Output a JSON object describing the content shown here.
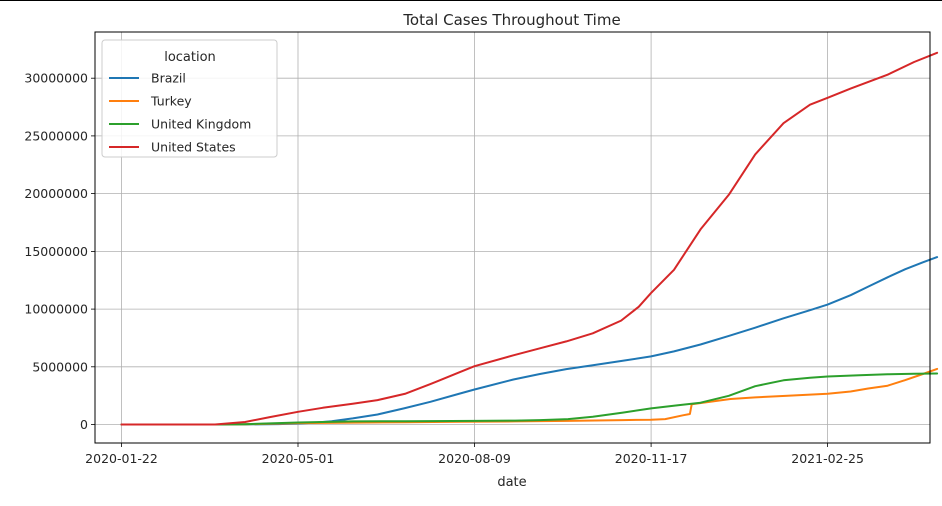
{
  "chart_data": {
    "type": "line",
    "title": "Total Cases Throughout Time",
    "xlabel": "date",
    "ylabel": "",
    "x_ticks": [
      "2020-01-22",
      "2020-05-01",
      "2020-08-09",
      "2020-11-17",
      "2021-02-25"
    ],
    "y_ticks": [
      0,
      5000000,
      10000000,
      15000000,
      20000000,
      25000000,
      30000000
    ],
    "xlim": [
      "2020-01-07",
      "2021-04-24"
    ],
    "ylim": [
      -1600000,
      34000000
    ],
    "grid": true,
    "legend": {
      "title": "location",
      "placement": "top-left"
    },
    "series": [
      {
        "name": "Brazil",
        "color": "#1f77b4",
        "points": [
          [
            "2020-01-22",
            0
          ],
          [
            "2020-02-26",
            0
          ],
          [
            "2020-03-15",
            200
          ],
          [
            "2020-04-01",
            6800
          ],
          [
            "2020-04-20",
            40000
          ],
          [
            "2020-05-01",
            92000
          ],
          [
            "2020-05-10",
            155000
          ],
          [
            "2020-05-20",
            290000
          ],
          [
            "2020-06-01",
            530000
          ],
          [
            "2020-06-15",
            870000
          ],
          [
            "2020-06-30",
            1400000
          ],
          [
            "2020-07-15",
            1970000
          ],
          [
            "2020-07-31",
            2650000
          ],
          [
            "2020-08-09",
            3035000
          ],
          [
            "2020-08-31",
            3900000
          ],
          [
            "2020-09-15",
            4380000
          ],
          [
            "2020-09-30",
            4800000
          ],
          [
            "2020-10-15",
            5140000
          ],
          [
            "2020-10-31",
            5500000
          ],
          [
            "2020-11-17",
            5900000
          ],
          [
            "2020-11-30",
            6330000
          ],
          [
            "2020-12-15",
            6930000
          ],
          [
            "2020-12-31",
            7680000
          ],
          [
            "2021-01-15",
            8390000
          ],
          [
            "2021-01-31",
            9200000
          ],
          [
            "2021-02-15",
            9900000
          ],
          [
            "2021-02-25",
            10390000
          ],
          [
            "2021-03-10",
            11200000
          ],
          [
            "2021-03-20",
            11950000
          ],
          [
            "2021-03-31",
            12750000
          ],
          [
            "2021-04-10",
            13450000
          ],
          [
            "2021-04-20",
            14050000
          ],
          [
            "2021-04-28",
            14500000
          ]
        ]
      },
      {
        "name": "Turkey",
        "color": "#ff7f0e",
        "points": [
          [
            "2020-01-22",
            0
          ],
          [
            "2020-03-10",
            0
          ],
          [
            "2020-03-20",
            360
          ],
          [
            "2020-04-01",
            15700
          ],
          [
            "2020-04-15",
            70000
          ],
          [
            "2020-05-01",
            122000
          ],
          [
            "2020-06-01",
            164000
          ],
          [
            "2020-07-01",
            201000
          ],
          [
            "2020-08-01",
            232000
          ],
          [
            "2020-09-01",
            272000
          ],
          [
            "2020-10-01",
            318000
          ],
          [
            "2020-11-01",
            380000
          ],
          [
            "2020-11-17",
            420000
          ],
          [
            "2020-11-25",
            470000
          ],
          [
            "2020-12-05",
            800000
          ],
          [
            "2020-12-09",
            910000
          ],
          [
            "2020-12-10",
            1750000
          ],
          [
            "2020-12-20",
            1960000
          ],
          [
            "2021-01-01",
            2210000
          ],
          [
            "2021-01-15",
            2350000
          ],
          [
            "2021-02-01",
            2480000
          ],
          [
            "2021-02-25",
            2660000
          ],
          [
            "2021-03-10",
            2860000
          ],
          [
            "2021-03-20",
            3120000
          ],
          [
            "2021-03-31",
            3360000
          ],
          [
            "2021-04-10",
            3850000
          ],
          [
            "2021-04-20",
            4380000
          ],
          [
            "2021-04-28",
            4820000
          ]
        ]
      },
      {
        "name": "United Kingdom",
        "color": "#2ca02c",
        "points": [
          [
            "2020-01-22",
            0
          ],
          [
            "2020-03-01",
            35
          ],
          [
            "2020-03-20",
            4000
          ],
          [
            "2020-04-01",
            30000
          ],
          [
            "2020-04-15",
            95000
          ],
          [
            "2020-05-01",
            178000
          ],
          [
            "2020-06-01",
            275000
          ],
          [
            "2020-07-01",
            285000
          ],
          [
            "2020-08-09",
            310000
          ],
          [
            "2020-09-01",
            340000
          ],
          [
            "2020-09-15",
            380000
          ],
          [
            "2020-10-01",
            470000
          ],
          [
            "2020-10-15",
            680000
          ],
          [
            "2020-11-01",
            1030000
          ],
          [
            "2020-11-17",
            1400000
          ],
          [
            "2020-12-01",
            1650000
          ],
          [
            "2020-12-15",
            1890000
          ],
          [
            "2020-12-31",
            2490000
          ],
          [
            "2021-01-15",
            3320000
          ],
          [
            "2021-01-31",
            3830000
          ],
          [
            "2021-02-15",
            4050000
          ],
          [
            "2021-02-25",
            4160000
          ],
          [
            "2021-03-15",
            4260000
          ],
          [
            "2021-03-31",
            4350000
          ],
          [
            "2021-04-15",
            4390000
          ],
          [
            "2021-04-28",
            4420000
          ]
        ]
      },
      {
        "name": "United States",
        "color": "#d62728",
        "points": [
          [
            "2020-01-22",
            1
          ],
          [
            "2020-03-01",
            75
          ],
          [
            "2020-03-15",
            3600
          ],
          [
            "2020-04-01",
            215000
          ],
          [
            "2020-04-15",
            640000
          ],
          [
            "2020-05-01",
            1100000
          ],
          [
            "2020-05-15",
            1450000
          ],
          [
            "2020-06-01",
            1800000
          ],
          [
            "2020-06-15",
            2120000
          ],
          [
            "2020-07-01",
            2680000
          ],
          [
            "2020-07-15",
            3500000
          ],
          [
            "2020-07-31",
            4500000
          ],
          [
            "2020-08-09",
            5050000
          ],
          [
            "2020-08-31",
            6000000
          ],
          [
            "2020-09-15",
            6600000
          ],
          [
            "2020-09-30",
            7200000
          ],
          [
            "2020-10-15",
            7900000
          ],
          [
            "2020-10-31",
            9000000
          ],
          [
            "2020-11-10",
            10200000
          ],
          [
            "2020-11-17",
            11400000
          ],
          [
            "2020-11-30",
            13400000
          ],
          [
            "2020-12-15",
            16900000
          ],
          [
            "2020-12-31",
            19900000
          ],
          [
            "2021-01-15",
            23400000
          ],
          [
            "2021-01-31",
            26100000
          ],
          [
            "2021-02-15",
            27700000
          ],
          [
            "2021-02-25",
            28300000
          ],
          [
            "2021-03-10",
            29100000
          ],
          [
            "2021-03-31",
            30300000
          ],
          [
            "2021-04-15",
            31400000
          ],
          [
            "2021-04-28",
            32200000
          ]
        ]
      }
    ]
  }
}
